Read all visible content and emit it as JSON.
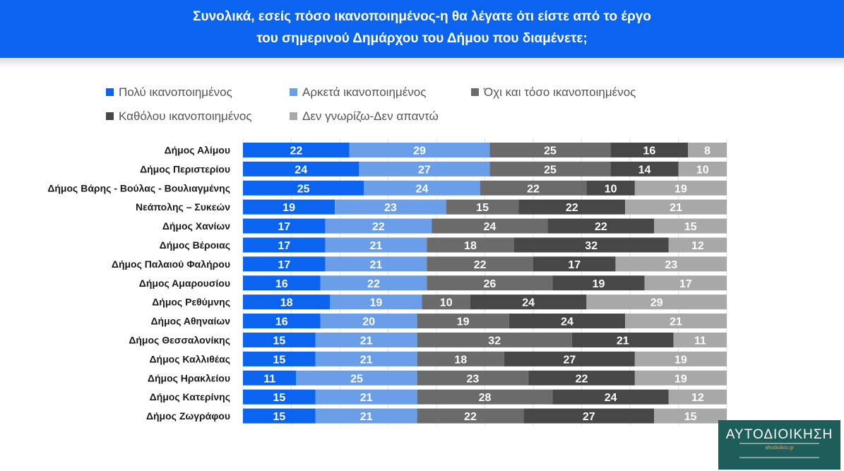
{
  "header": {
    "title_line1": "Συνολικά, εσείς πόσο ικανοποιημένος-η θα λέγατε ότι είστε από το έργο",
    "title_line2": "του σημερινού Δημάρχου του Δήμου που διαμένετε;"
  },
  "logo": {
    "name": "ΑΥΤΟΔΙΟΙΚΗΣΗ",
    "sub": "aftodioikisi.gr"
  },
  "chart_data": {
    "type": "bar",
    "orientation": "horizontal",
    "stacked": true,
    "normalized": true,
    "title": "Συνολικά, εσείς πόσο ικανοποιημένος-η θα λέγατε ότι είστε από το έργο του σημερινού Δημάρχου του Δήμου που διαμένετε;",
    "legend_position": "top",
    "grid": true,
    "categories": [
      "Δήμος Αλίμου",
      "Δήμος Περιστερίου",
      "Δήμος Βάρης - Βούλας - Βουλιαγμένης",
      "Νεάπολης – Συκεών",
      "Δήμος Χανίων",
      "Δήμος Βέροιας",
      "Δήμος Παλαιού Φαλήρου",
      "Δήμος Αμαρουσίου",
      "Δήμος Ρεθύμνης",
      "Δήμος Αθηναίων",
      "Δήμος Θεσσαλονίκης",
      "Δήμος Καλλιθέας",
      "Δήμος Ηρακλείου",
      "Δήμος Κατερίνης",
      "Δήμος Ζωγράφου"
    ],
    "series": [
      {
        "name": "Πολύ ικανοποιημένος",
        "color": "#0a64f0",
        "values": [
          22,
          24,
          25,
          19,
          17,
          17,
          17,
          16,
          18,
          16,
          15,
          15,
          11,
          15,
          15
        ]
      },
      {
        "name": "Αρκετά ικανοποιημένος",
        "color": "#6a9ee8",
        "values": [
          29,
          27,
          24,
          23,
          22,
          21,
          21,
          22,
          19,
          20,
          21,
          21,
          25,
          21,
          21
        ]
      },
      {
        "name": "Όχι και τόσο ικανοποιημένος",
        "color": "#6b6b6b",
        "values": [
          25,
          25,
          22,
          15,
          24,
          18,
          22,
          26,
          10,
          19,
          32,
          18,
          23,
          28,
          22
        ]
      },
      {
        "name": "Καθόλου ικανοποιημένος",
        "color": "#474747",
        "values": [
          16,
          14,
          10,
          22,
          22,
          32,
          17,
          19,
          24,
          24,
          21,
          27,
          22,
          24,
          27
        ]
      },
      {
        "name": "Δεν γνωρίζω-Δεν απαντώ",
        "color": "#a8a8a8",
        "values": [
          8,
          10,
          19,
          21,
          15,
          12,
          23,
          17,
          29,
          21,
          11,
          19,
          19,
          12,
          15
        ]
      }
    ]
  }
}
